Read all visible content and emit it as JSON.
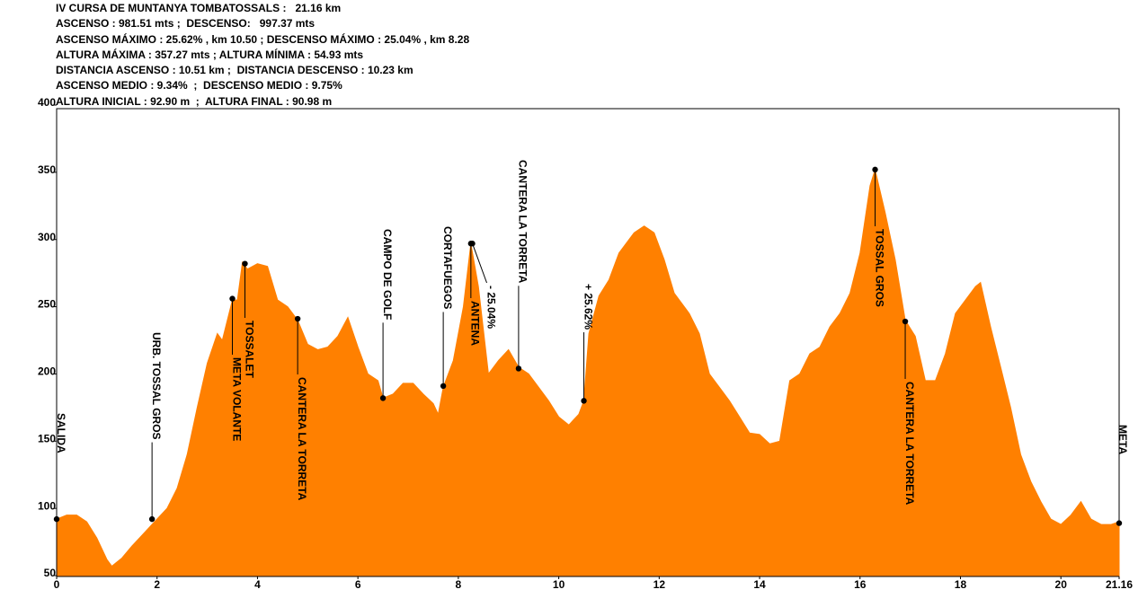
{
  "header": {
    "lines": [
      "IV CURSA DE MUNTANYA TOMBATOSSALS :   21.16 km",
      "ASCENSO : 981.51 mts ;  DESCENSO:   997.37 mts",
      "ASCENSO MÁXIMO : 25.62% , km 10.50 ; DESCENSO MÁXIMO : 25.04% , km 8.28",
      "ALTURA MÁXIMA : 357.27 mts ; ALTURA MÍNIMA : 54.93 mts",
      "DISTANCIA ASCENSO : 10.51 km ;  DISTANCIA DESCENSO : 10.23 km",
      "ASCENSO MEDIO : 9.34%  ;  DESCENSO MEDIO : 9.75%",
      "ALTURA INICIAL : 92.90 m  ;  ALTURA FINAL : 90.98 m"
    ]
  },
  "chart_data": {
    "type": "area",
    "color": "#ff8000",
    "x": [
      0,
      0.2,
      0.4,
      0.6,
      0.8,
      1.0,
      1.1,
      1.3,
      1.5,
      1.7,
      1.9,
      2.0,
      2.2,
      2.4,
      2.6,
      2.8,
      3.0,
      3.2,
      3.3,
      3.5,
      3.6,
      3.7,
      3.8,
      4.0,
      4.2,
      4.4,
      4.6,
      4.8,
      5.0,
      5.2,
      5.4,
      5.6,
      5.8,
      6.0,
      6.2,
      6.4,
      6.5,
      6.7,
      6.9,
      7.1,
      7.3,
      7.5,
      7.6,
      7.7,
      7.9,
      8.1,
      8.25,
      8.4,
      8.6,
      8.8,
      9.0,
      9.2,
      9.4,
      9.6,
      9.8,
      10.0,
      10.2,
      10.4,
      10.5,
      10.6,
      10.8,
      11.0,
      11.2,
      11.5,
      11.7,
      11.9,
      12.1,
      12.3,
      12.6,
      12.8,
      13.0,
      13.2,
      13.4,
      13.6,
      13.8,
      14.0,
      14.2,
      14.4,
      14.6,
      14.8,
      15.0,
      15.2,
      15.4,
      15.6,
      15.8,
      16.0,
      16.2,
      16.3,
      16.5,
      16.7,
      16.9,
      17.1,
      17.3,
      17.5,
      17.7,
      17.9,
      18.1,
      18.3,
      18.4,
      18.6,
      18.8,
      19.0,
      19.2,
      19.4,
      19.6,
      19.8,
      20.0,
      20.2,
      20.4,
      20.6,
      20.8,
      21.0,
      21.16
    ],
    "values": [
      92,
      95,
      95,
      90,
      78,
      62,
      57,
      63,
      72,
      80,
      88,
      92,
      100,
      115,
      140,
      175,
      208,
      230,
      225,
      255,
      255,
      283,
      278,
      282,
      280,
      255,
      250,
      240,
      222,
      218,
      220,
      228,
      242,
      220,
      200,
      195,
      182,
      185,
      193,
      193,
      185,
      178,
      170,
      190,
      210,
      250,
      297,
      265,
      200,
      210,
      218,
      205,
      200,
      190,
      180,
      168,
      162,
      170,
      180,
      230,
      258,
      270,
      290,
      305,
      310,
      305,
      285,
      260,
      245,
      230,
      200,
      190,
      180,
      168,
      156,
      155,
      148,
      150,
      195,
      200,
      215,
      220,
      235,
      245,
      260,
      290,
      340,
      352,
      320,
      285,
      240,
      228,
      195,
      195,
      215,
      245,
      255,
      265,
      268,
      235,
      205,
      175,
      140,
      120,
      105,
      92,
      88,
      95,
      105,
      92,
      88,
      88,
      90
    ],
    "xlim": [
      0,
      21.16
    ],
    "xticks": [
      0,
      2,
      4,
      6,
      8,
      10,
      12,
      14,
      16,
      18,
      20,
      21.16
    ],
    "ylim": [
      50,
      400
    ],
    "yticks": [
      50,
      100,
      150,
      200,
      250,
      300,
      350,
      400
    ],
    "annotations": [
      {
        "label": "SALIDA",
        "km": 0,
        "elevation": 92
      },
      {
        "label": "URB. TOSSAL GROS",
        "km": 1.9,
        "elevation": 92
      },
      {
        "label": "META VOLANTE",
        "km": 3.5,
        "elevation": 256
      },
      {
        "label": "TOSSALET",
        "km": 3.75,
        "elevation": 282
      },
      {
        "label": "CANTERA LA TORRETA",
        "km": 4.8,
        "elevation": 241
      },
      {
        "label": "CAMPO DE GOLF",
        "km": 6.5,
        "elevation": 182
      },
      {
        "label": "CORTAFUEGOS",
        "km": 7.7,
        "elevation": 191
      },
      {
        "label": "ANTENA",
        "km": 8.25,
        "elevation": 297
      },
      {
        "label": "- 25.04%",
        "km": 8.28,
        "elevation": 297
      },
      {
        "label": "CANTERA LA TORRETA",
        "km": 9.2,
        "elevation": 204
      },
      {
        "label": "+ 25.62%",
        "km": 10.5,
        "elevation": 180
      },
      {
        "label": "TOSSAL GROS",
        "km": 16.3,
        "elevation": 352
      },
      {
        "label": "CANTERA LA TORRETA",
        "km": 16.9,
        "elevation": 239
      },
      {
        "label": "META",
        "km": 21.16,
        "elevation": 89
      }
    ]
  }
}
